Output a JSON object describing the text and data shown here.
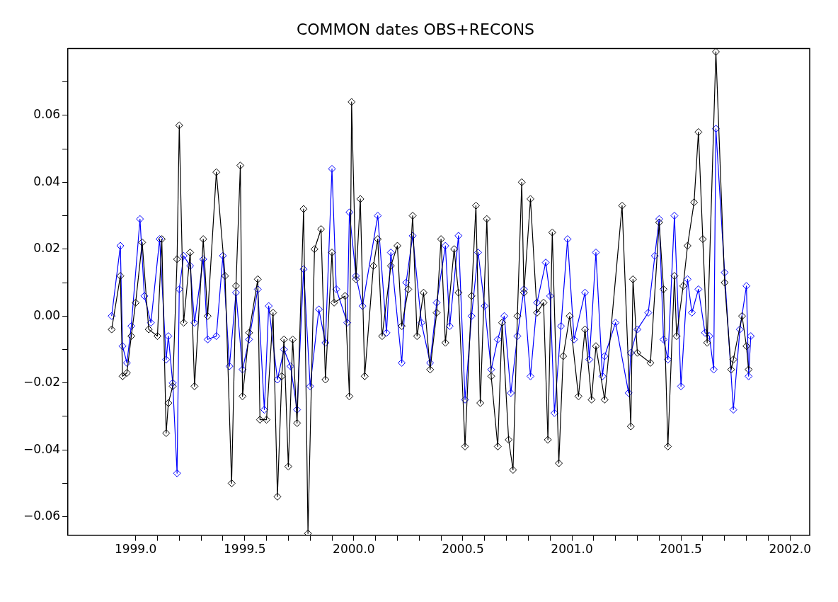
{
  "chart_data": {
    "type": "line",
    "title": "COMMON dates OBS+RECONS",
    "marker": "diamond",
    "line_style": "solid",
    "legend": false,
    "grid": false,
    "xlim": [
      1998.69,
      2002.09
    ],
    "ylim": [
      -0.0655,
      0.08
    ],
    "xticks": [
      {
        "value": 1999,
        "label": "1999.0"
      },
      {
        "value": 1999.1,
        "label": null
      },
      {
        "value": 1999.2,
        "label": null
      },
      {
        "value": 1999.3,
        "label": null
      },
      {
        "value": 1999.4,
        "label": null
      },
      {
        "value": 1999.5,
        "label": "1999.5"
      },
      {
        "value": 1999.6,
        "label": null
      },
      {
        "value": 1999.7,
        "label": null
      },
      {
        "value": 1999.8,
        "label": null
      },
      {
        "value": 1999.9,
        "label": null
      },
      {
        "value": 2000,
        "label": "2000.0"
      },
      {
        "value": 2000.1,
        "label": null
      },
      {
        "value": 2000.2,
        "label": null
      },
      {
        "value": 2000.3,
        "label": null
      },
      {
        "value": 2000.4,
        "label": null
      },
      {
        "value": 2000.5,
        "label": "2000.5"
      },
      {
        "value": 2000.6,
        "label": null
      },
      {
        "value": 2000.7,
        "label": null
      },
      {
        "value": 2000.8,
        "label": null
      },
      {
        "value": 2000.9,
        "label": null
      },
      {
        "value": 2001,
        "label": "2001.0"
      },
      {
        "value": 2001.1,
        "label": null
      },
      {
        "value": 2001.2,
        "label": null
      },
      {
        "value": 2001.3,
        "label": null
      },
      {
        "value": 2001.4,
        "label": null
      },
      {
        "value": 2001.5,
        "label": "2001.5"
      },
      {
        "value": 2001.6,
        "label": null
      },
      {
        "value": 2001.7,
        "label": null
      },
      {
        "value": 2001.8,
        "label": null
      },
      {
        "value": 2001.9,
        "label": null
      },
      {
        "value": 2002,
        "label": "2002.0"
      }
    ],
    "yticks": [
      {
        "value": -0.06,
        "label": "−0.06"
      },
      {
        "value": -0.05,
        "label": null
      },
      {
        "value": -0.04,
        "label": "−0.04"
      },
      {
        "value": -0.03,
        "label": null
      },
      {
        "value": -0.02,
        "label": "−0.02"
      },
      {
        "value": -0.01,
        "label": null
      },
      {
        "value": 0,
        "label": "0.00"
      },
      {
        "value": 0.01,
        "label": null
      },
      {
        "value": 0.02,
        "label": "0.02"
      },
      {
        "value": 0.03,
        "label": null
      },
      {
        "value": 0.04,
        "label": "0.04"
      },
      {
        "value": 0.05,
        "label": null
      },
      {
        "value": 0.06,
        "label": "0.06"
      },
      {
        "value": 0.07,
        "label": null
      }
    ],
    "series": [
      {
        "color": "#000000",
        "x": [
          1998.89,
          1998.93,
          1998.94,
          1998.96,
          1998.98,
          1999.0,
          1999.03,
          1999.06,
          1999.1,
          1999.12,
          1999.14,
          1999.15,
          1999.17,
          1999.19,
          1999.2,
          1999.22,
          1999.25,
          1999.27,
          1999.31,
          1999.33,
          1999.37,
          1999.41,
          1999.44,
          1999.46,
          1999.48,
          1999.49,
          1999.52,
          1999.56,
          1999.57,
          1999.6,
          1999.63,
          1999.65,
          1999.67,
          1999.68,
          1999.7,
          1999.72,
          1999.74,
          1999.77,
          1999.79,
          1999.82,
          1999.85,
          1999.87,
          1999.9,
          1999.91,
          1999.96,
          1999.98,
          1999.99,
          2000.01,
          2000.03,
          2000.05,
          2000.09,
          2000.11,
          2000.13,
          2000.17,
          2000.2,
          2000.22,
          2000.25,
          2000.27,
          2000.29,
          2000.32,
          2000.35,
          2000.38,
          2000.4,
          2000.42,
          2000.46,
          2000.48,
          2000.51,
          2000.54,
          2000.56,
          2000.58,
          2000.61,
          2000.63,
          2000.66,
          2000.68,
          2000.71,
          2000.73,
          2000.75,
          2000.77,
          2000.78,
          2000.81,
          2000.84,
          2000.87,
          2000.89,
          2000.91,
          2000.94,
          2000.96,
          2000.99,
          2001.03,
          2001.06,
          2001.09,
          2001.11,
          2001.15,
          2001.23,
          2001.27,
          2001.28,
          2001.3,
          2001.36,
          2001.4,
          2001.42,
          2001.44,
          2001.47,
          2001.48,
          2001.51,
          2001.53,
          2001.56,
          2001.58,
          2001.6,
          2001.62,
          2001.66,
          2001.7,
          2001.73,
          2001.74,
          2001.78,
          2001.8,
          2001.81
        ],
        "values": [
          -0.004,
          0.012,
          -0.018,
          -0.017,
          -0.006,
          0.004,
          0.022,
          -0.004,
          -0.006,
          0.023,
          -0.035,
          -0.026,
          -0.021,
          0.017,
          0.057,
          -0.002,
          0.019,
          -0.021,
          0.023,
          0.0,
          0.043,
          0.012,
          -0.05,
          0.009,
          0.045,
          -0.024,
          -0.005,
          0.011,
          -0.031,
          -0.031,
          0.001,
          -0.054,
          -0.018,
          -0.007,
          -0.045,
          -0.007,
          -0.032,
          0.032,
          -0.065,
          0.02,
          0.026,
          -0.019,
          0.019,
          0.004,
          0.006,
          -0.024,
          0.064,
          0.011,
          0.035,
          -0.018,
          0.015,
          0.023,
          -0.006,
          0.015,
          0.021,
          -0.003,
          0.008,
          0.03,
          -0.006,
          0.007,
          -0.016,
          0.001,
          0.023,
          -0.008,
          0.02,
          0.007,
          -0.039,
          0.006,
          0.033,
          -0.026,
          0.029,
          -0.018,
          -0.039,
          -0.002,
          -0.037,
          -0.046,
          0.0,
          0.04,
          0.007,
          0.035,
          0.001,
          0.004,
          -0.037,
          0.025,
          -0.044,
          -0.012,
          0.0,
          -0.024,
          -0.004,
          -0.025,
          -0.009,
          -0.025,
          0.033,
          -0.033,
          0.011,
          -0.011,
          -0.014,
          0.028,
          0.008,
          -0.039,
          0.012,
          -0.006,
          0.009,
          0.021,
          0.034,
          0.055,
          0.023,
          -0.008,
          0.079,
          0.01,
          -0.016,
          -0.013,
          0.0,
          -0.009,
          -0.016
        ]
      },
      {
        "color": "#0000ff",
        "x": [
          1998.89,
          1998.93,
          1998.94,
          1998.96,
          1998.98,
          1999.02,
          1999.04,
          1999.07,
          1999.11,
          1999.14,
          1999.15,
          1999.17,
          1999.19,
          1999.2,
          1999.22,
          1999.25,
          1999.27,
          1999.31,
          1999.33,
          1999.37,
          1999.4,
          1999.43,
          1999.46,
          1999.49,
          1999.52,
          1999.56,
          1999.59,
          1999.61,
          1999.65,
          1999.68,
          1999.71,
          1999.74,
          1999.77,
          1999.8,
          1999.84,
          1999.87,
          1999.9,
          1999.92,
          1999.97,
          1999.98,
          2000.01,
          2000.04,
          2000.11,
          2000.15,
          2000.17,
          2000.22,
          2000.24,
          2000.27,
          2000.31,
          2000.35,
          2000.38,
          2000.42,
          2000.44,
          2000.48,
          2000.51,
          2000.54,
          2000.57,
          2000.6,
          2000.63,
          2000.66,
          2000.69,
          2000.72,
          2000.75,
          2000.78,
          2000.81,
          2000.84,
          2000.88,
          2000.9,
          2000.92,
          2000.95,
          2000.98,
          2001.01,
          2001.06,
          2001.08,
          2001.11,
          2001.14,
          2001.15,
          2001.2,
          2001.26,
          2001.27,
          2001.3,
          2001.35,
          2001.38,
          2001.4,
          2001.42,
          2001.44,
          2001.47,
          2001.5,
          2001.53,
          2001.55,
          2001.58,
          2001.61,
          2001.63,
          2001.65,
          2001.66,
          2001.7,
          2001.74,
          2001.77,
          2001.8,
          2001.81,
          2001.82
        ],
        "values": [
          0.0,
          0.021,
          -0.009,
          -0.014,
          -0.003,
          0.029,
          0.006,
          -0.002,
          0.023,
          -0.013,
          -0.006,
          -0.02,
          -0.047,
          0.008,
          0.018,
          0.015,
          -0.002,
          0.017,
          -0.007,
          -0.006,
          0.018,
          -0.015,
          0.007,
          -0.016,
          -0.007,
          0.008,
          -0.028,
          0.003,
          -0.019,
          -0.01,
          -0.015,
          -0.028,
          0.014,
          -0.021,
          0.002,
          -0.008,
          0.044,
          0.008,
          -0.002,
          0.031,
          0.012,
          0.003,
          0.03,
          -0.005,
          0.019,
          -0.014,
          0.01,
          0.024,
          -0.002,
          -0.014,
          0.004,
          0.021,
          -0.003,
          0.024,
          -0.025,
          0.0,
          0.019,
          0.003,
          -0.016,
          -0.007,
          0.0,
          -0.023,
          -0.006,
          0.008,
          -0.018,
          0.004,
          0.016,
          0.006,
          -0.029,
          -0.003,
          0.023,
          -0.007,
          0.007,
          -0.013,
          0.019,
          -0.018,
          -0.012,
          -0.002,
          -0.023,
          -0.011,
          -0.004,
          0.001,
          0.018,
          0.029,
          -0.007,
          -0.013,
          0.03,
          -0.021,
          0.011,
          0.001,
          0.008,
          -0.005,
          -0.006,
          -0.016,
          0.056,
          0.013,
          -0.028,
          -0.004,
          0.009,
          -0.018,
          -0.006
        ]
      }
    ]
  }
}
